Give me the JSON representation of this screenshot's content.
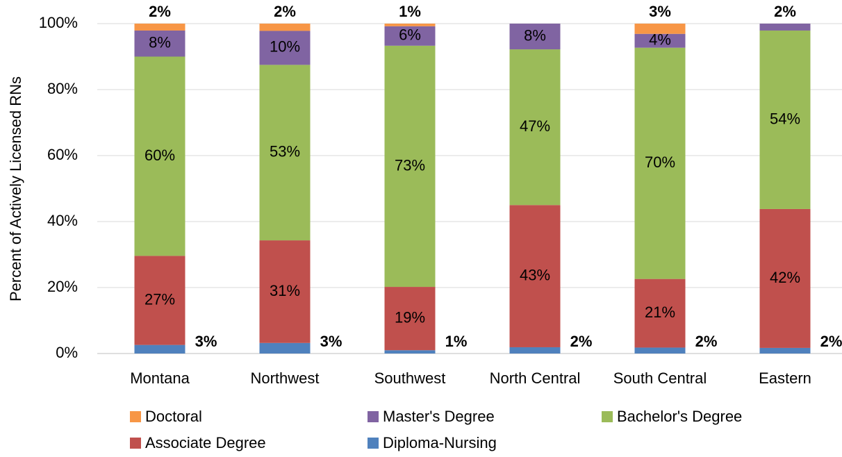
{
  "chart_data": {
    "type": "stacked_bar",
    "y_label": "Percent of Actively Licensed RNs",
    "categories": [
      "Montana",
      "Northwest",
      "Southwest",
      "North Central",
      "South Central",
      "Eastern"
    ],
    "series": [
      {
        "name": "Diploma-Nursing",
        "color": "#4f81bd",
        "values": [
          2.6,
          3.2,
          1.0,
          1.9,
          1.8,
          1.7
        ],
        "value_labels": [
          "3%",
          "3%",
          "1%",
          "2%",
          "2%",
          "2%"
        ]
      },
      {
        "name": "Associate Degree",
        "color": "#c0504d",
        "values": [
          27.0,
          31.1,
          19.2,
          43.1,
          20.8,
          42.1
        ],
        "value_labels": [
          "27%",
          "31%",
          "19%",
          "43%",
          "21%",
          "42%"
        ]
      },
      {
        "name": "Bachelor's Degree",
        "color": "#9bbb59",
        "values": [
          60.4,
          53.2,
          73.1,
          47.2,
          70.1,
          54.1
        ],
        "value_labels": [
          "60%",
          "53%",
          "73%",
          "47%",
          "70%",
          "54%"
        ]
      },
      {
        "name": "Master's Degree",
        "color": "#8064a2",
        "values": [
          7.9,
          10.3,
          5.9,
          7.8,
          4.2,
          2.1
        ],
        "value_labels": [
          "8%",
          "10%",
          "6%",
          "8%",
          "4%",
          "2%"
        ]
      },
      {
        "name": "Doctoral",
        "color": "#f79646",
        "values": [
          2.1,
          2.2,
          0.8,
          0,
          3.1,
          0
        ],
        "value_labels": [
          "2%",
          "2%",
          "1%",
          null,
          "3%",
          null
        ]
      }
    ],
    "ylim": [
      0,
      100
    ],
    "yticks": [
      {
        "value": 0,
        "label": "0%"
      },
      {
        "value": 20,
        "label": "20%"
      },
      {
        "value": 40,
        "label": "40%"
      },
      {
        "value": 60,
        "label": "60%"
      },
      {
        "value": 80,
        "label": "80%"
      },
      {
        "value": 100,
        "label": "100%"
      }
    ],
    "grid": true
  }
}
